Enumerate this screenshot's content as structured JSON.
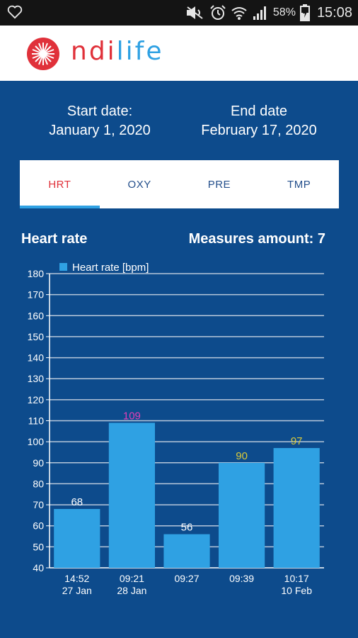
{
  "status_bar": {
    "battery_percent": "58%",
    "time": "15:08",
    "icons": [
      "heart-outline-icon",
      "mute-icon",
      "alarm-icon",
      "wifi-icon",
      "signal-icon",
      "battery-charging-icon"
    ]
  },
  "header": {
    "logo_text_part1": "ndi",
    "logo_text_part2": "life",
    "logo_icon": "brand-star-logo-icon"
  },
  "dates": {
    "start_label": "Start date:",
    "start_value": "January 1, 2020",
    "end_label": "End date",
    "end_value": "February 17, 2020"
  },
  "tabs": [
    {
      "label": "HRT",
      "active": true
    },
    {
      "label": "OXY",
      "active": false
    },
    {
      "label": "PRE",
      "active": false
    },
    {
      "label": "TMP",
      "active": false
    }
  ],
  "section": {
    "title": "Heart rate",
    "measures_label": "Measures amount: 7"
  },
  "chart_data": {
    "type": "bar",
    "legend": "Heart rate [bpm]",
    "legend_placement": "top-left",
    "categories": [
      {
        "time": "14:52",
        "date": "27 Jan"
      },
      {
        "time": "09:21",
        "date": "28 Jan"
      },
      {
        "time": "09:27",
        "date": ""
      },
      {
        "time": "09:39",
        "date": ""
      },
      {
        "time": "10:17",
        "date": "10 Feb"
      }
    ],
    "values": [
      68,
      109,
      56,
      90,
      97
    ],
    "value_label_colors": [
      "#ffffff",
      "#e23fb8",
      "#ffffff",
      "#d9c93a",
      "#d9c93a"
    ],
    "ylim": [
      40,
      180
    ],
    "yticks": [
      40,
      50,
      60,
      70,
      80,
      90,
      100,
      110,
      120,
      130,
      140,
      150,
      160,
      170,
      180
    ],
    "grid": true,
    "bar_color": "#2fa1e3"
  },
  "colors": {
    "background": "#0d4b8c",
    "accent_red": "#e0313a",
    "accent_blue": "#2fa1e3"
  }
}
